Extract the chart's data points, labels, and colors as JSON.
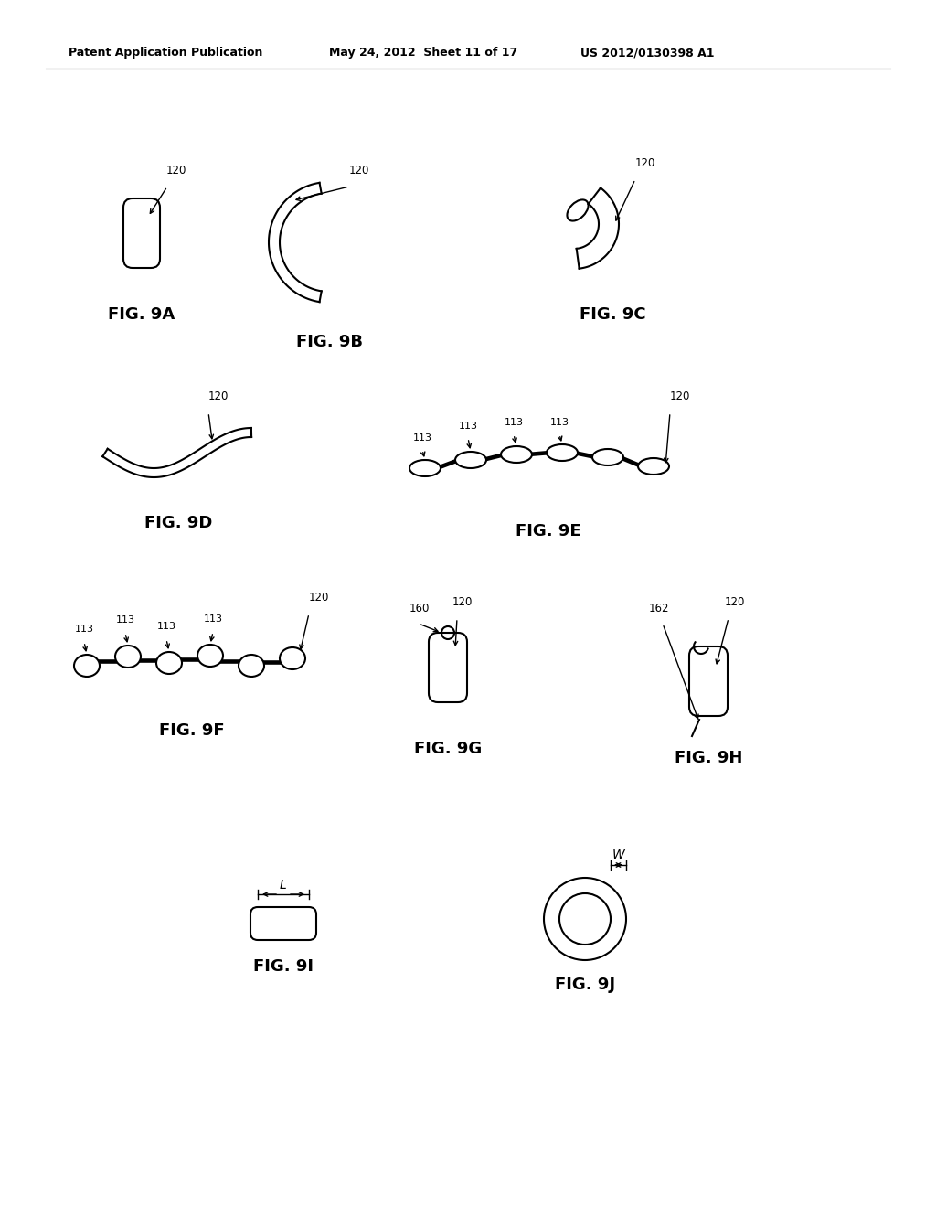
{
  "bg_color": "#ffffff",
  "line_color": "#000000",
  "header_left": "Patent Application Publication",
  "header_mid": "May 24, 2012  Sheet 11 of 17",
  "header_right": "US 2012/0130398 A1",
  "ref_120": "120",
  "ref_113": "113",
  "ref_160": "160",
  "ref_162": "162",
  "label_L": "L",
  "label_W": "W",
  "fig_labels": [
    "FIG. 9A",
    "FIG. 9B",
    "FIG. 9C",
    "FIG. 9D",
    "FIG. 9E",
    "FIG. 9F",
    "FIG. 9G",
    "FIG. 9H",
    "FIG. 9I",
    "FIG. 9J"
  ]
}
